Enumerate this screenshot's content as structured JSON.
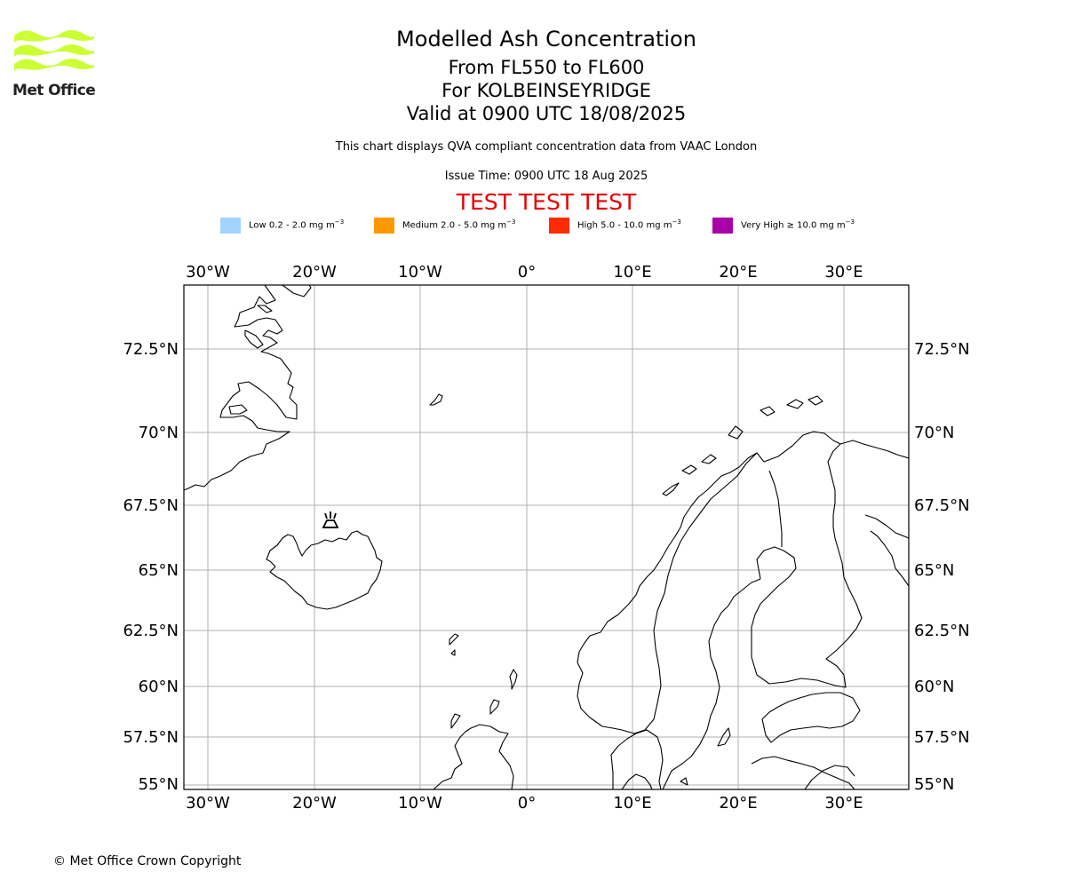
{
  "logo": {
    "text": "Met Office",
    "color": "#ccff33"
  },
  "titles": {
    "main": "Modelled Ash Concentration",
    "levels": "From FL550 to FL600",
    "location": "For KOLBEINSEYRIDGE",
    "valid": "Valid at 0900 UTC 18/08/2025"
  },
  "subtitle": "This chart displays QVA compliant concentration data from VAAC London",
  "issue_time": "Issue Time: 0900 UTC 18 Aug 2025",
  "test_banner": "TEST TEST TEST",
  "legend": [
    {
      "label": "Low 0.2 - 2.0 mg m",
      "color": "#a3d3ff"
    },
    {
      "label": "Medium 2.0 - 5.0 mg m",
      "color": "#ff9900"
    },
    {
      "label": "High 5.0 - 10.0 mg m",
      "color": "#ff2b00"
    },
    {
      "label": "Very High ≥ 10.0 mg m",
      "color": "#aa00aa"
    }
  ],
  "legend_exponent": "−3",
  "map": {
    "longitude_labels": [
      "30°W",
      "20°W",
      "10°W",
      "0°",
      "10°E",
      "20°E",
      "30°E"
    ],
    "latitude_labels": [
      "72.5°N",
      "70°N",
      "67.5°N",
      "65°N",
      "62.5°N",
      "60°N",
      "57.5°N",
      "55°N"
    ],
    "volcano_marker": "volcano-symbol",
    "gridlines": true
  },
  "copyright": "© Met Office Crown Copyright"
}
